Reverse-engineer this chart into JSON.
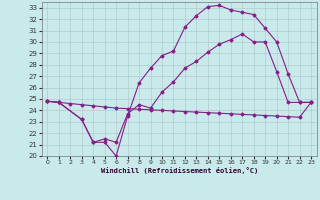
{
  "xlabel": "Windchill (Refroidissement éolien,°C)",
  "background_color": "#c8eaea",
  "grid_color": "#b0cccc",
  "line_color": "#8b1a8b",
  "xlim": [
    -0.5,
    23.5
  ],
  "ylim": [
    20,
    33.5
  ],
  "xticks": [
    0,
    1,
    2,
    3,
    4,
    5,
    6,
    7,
    8,
    9,
    10,
    11,
    12,
    13,
    14,
    15,
    16,
    17,
    18,
    19,
    20,
    21,
    22,
    23
  ],
  "yticks": [
    20,
    21,
    22,
    23,
    24,
    25,
    26,
    27,
    28,
    29,
    30,
    31,
    32,
    33
  ],
  "line1_x": [
    0,
    1,
    2,
    3,
    4,
    5,
    6,
    7,
    8,
    9,
    10,
    11,
    12,
    13,
    14,
    15,
    16,
    17,
    18,
    19,
    20,
    21,
    22,
    23
  ],
  "line1_y": [
    24.8,
    24.7,
    24.6,
    24.5,
    24.4,
    24.3,
    24.2,
    24.15,
    24.1,
    24.05,
    24.0,
    23.95,
    23.9,
    23.85,
    23.8,
    23.75,
    23.7,
    23.65,
    23.6,
    23.55,
    23.5,
    23.45,
    23.4,
    24.7
  ],
  "line2_x": [
    0,
    1,
    3,
    4,
    5,
    6,
    7,
    8,
    9,
    10,
    11,
    12,
    13,
    14,
    15,
    16,
    17,
    18,
    19,
    20,
    21,
    22,
    23
  ],
  "line2_y": [
    24.8,
    24.7,
    23.2,
    21.2,
    21.2,
    20.0,
    23.5,
    26.4,
    27.7,
    28.8,
    29.2,
    31.3,
    32.3,
    33.1,
    33.2,
    32.8,
    32.6,
    32.4,
    31.2,
    30.0,
    27.2,
    24.7,
    24.7
  ],
  "line3_x": [
    0,
    1,
    3,
    4,
    5,
    6,
    7,
    8,
    9,
    10,
    11,
    12,
    13,
    14,
    15,
    16,
    17,
    18,
    19,
    20,
    21,
    22,
    23
  ],
  "line3_y": [
    24.8,
    24.7,
    23.2,
    21.2,
    21.5,
    21.2,
    23.7,
    24.5,
    24.2,
    25.6,
    26.5,
    27.7,
    28.3,
    29.1,
    29.8,
    30.2,
    30.7,
    30.0,
    30.0,
    27.4,
    24.7,
    24.7,
    24.7
  ]
}
